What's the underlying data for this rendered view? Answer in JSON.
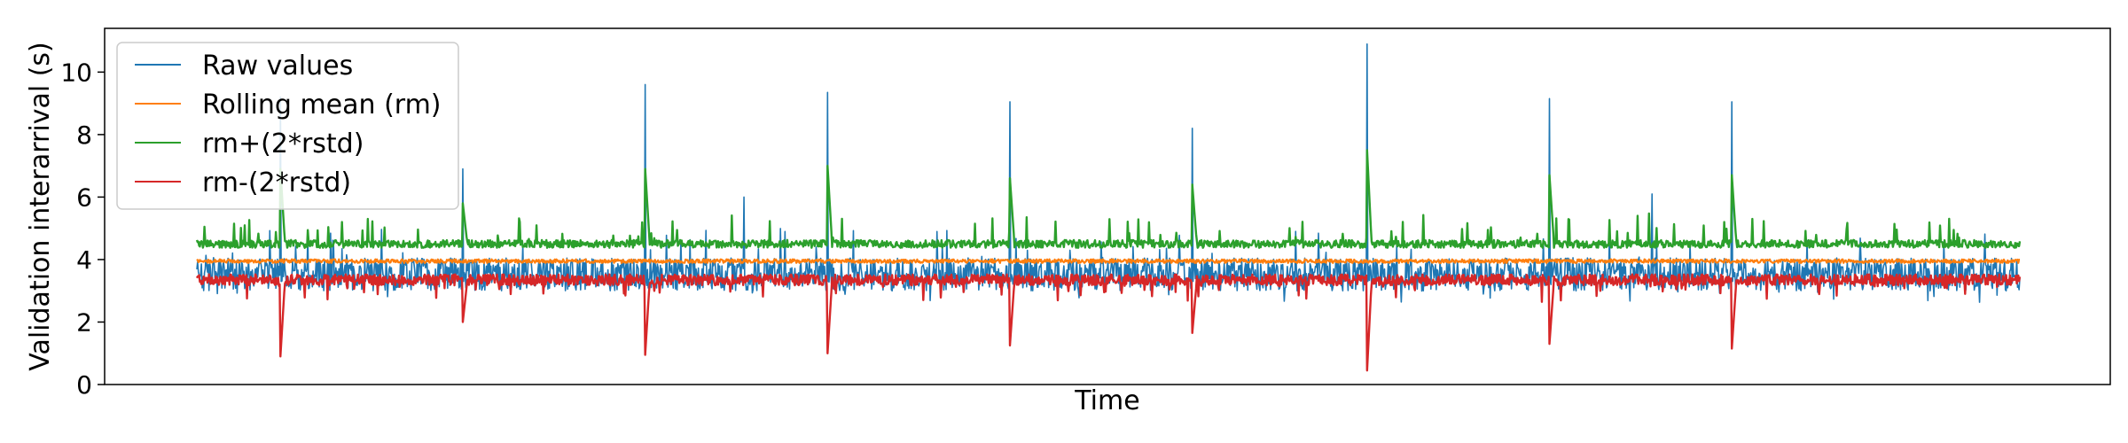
{
  "chart_data": {
    "type": "line",
    "xlabel": "Time",
    "ylabel": "Validation interarrival (s)",
    "ylim": [
      0,
      11.4
    ],
    "yticks": [
      0,
      2,
      4,
      6,
      8,
      10
    ],
    "ytick_labels": [
      "0",
      "2",
      "4",
      "6",
      "8",
      "10"
    ],
    "grid": false,
    "legend_placement": "top-left",
    "series": [
      {
        "name": "Raw values",
        "color": "#1f77b4",
        "baseline_low": 3.0,
        "baseline_high": 4.05,
        "spikes": [
          9.2,
          6.9,
          9.6,
          6.0,
          9.35,
          9.05,
          8.2,
          10.9,
          9.15,
          6.1,
          9.05
        ]
      },
      {
        "name": "Rolling mean (rm)",
        "color": "#ff7f0e",
        "baseline": 3.95
      },
      {
        "name": "rm+(2*rstd)",
        "color": "#2ca02c",
        "baseline": 4.5,
        "spikes": [
          6.9,
          5.8,
          6.9,
          7.0,
          6.6,
          6.4,
          7.5,
          6.7,
          6.7
        ]
      },
      {
        "name": "rm-(2*rstd)",
        "color": "#d62728",
        "baseline": 3.35,
        "dips": [
          0.9,
          2.0,
          0.95,
          1.0,
          1.25,
          1.65,
          0.45,
          1.3,
          1.15
        ]
      }
    ]
  }
}
